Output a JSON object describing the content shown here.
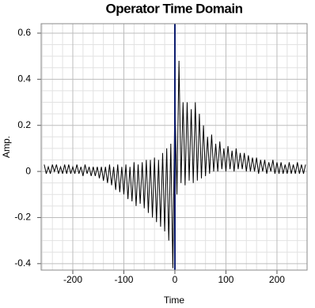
{
  "chart_data": {
    "type": "line",
    "title": "Operator Time Domain",
    "x_label": "Time",
    "y_label": "Amp.",
    "color": "#000000",
    "vline_x": 0,
    "vline_color": "#0a1a6e",
    "grid": true,
    "xlim": [
      -262,
      259
    ],
    "ylim": [
      -0.428,
      0.641
    ],
    "xticks": [
      -200,
      -100,
      0,
      100,
      200
    ],
    "yticks": [
      -0.4,
      -0.2,
      0,
      0.2,
      0.4,
      0.6
    ],
    "xminorticks": [
      -260,
      -240,
      -220,
      -180,
      -160,
      -140,
      -120,
      -80,
      -60,
      -40,
      -20,
      20,
      40,
      60,
      80,
      120,
      140,
      160,
      180,
      220,
      240
    ],
    "yminorticks": [
      -0.35,
      -0.3,
      -0.25,
      -0.15,
      -0.1,
      -0.05,
      0.05,
      0.1,
      0.15,
      0.25,
      0.3,
      0.35,
      0.45,
      0.5,
      0.55
    ],
    "x": [
      -256,
      -252,
      -248,
      -244,
      -240,
      -236,
      -232,
      -228,
      -224,
      -220,
      -216,
      -212,
      -208,
      -204,
      -200,
      -196,
      -192,
      -188,
      -184,
      -180,
      -176,
      -172,
      -168,
      -164,
      -160,
      -156,
      -152,
      -148,
      -144,
      -140,
      -136,
      -132,
      -128,
      -124,
      -120,
      -116,
      -112,
      -108,
      -104,
      -100,
      -96,
      -92,
      -88,
      -84,
      -80,
      -76,
      -72,
      -68,
      -64,
      -60,
      -56,
      -52,
      -48,
      -44,
      -40,
      -36,
      -32,
      -28,
      -24,
      -20,
      -16,
      -12,
      -8,
      -4,
      0,
      4,
      8,
      12,
      16,
      20,
      24,
      28,
      32,
      36,
      40,
      44,
      48,
      52,
      56,
      60,
      64,
      68,
      72,
      76,
      80,
      84,
      88,
      92,
      96,
      100,
      104,
      108,
      112,
      116,
      120,
      124,
      128,
      132,
      136,
      140,
      144,
      148,
      152,
      156,
      160,
      164,
      168,
      172,
      176,
      180,
      184,
      188,
      192,
      196,
      200,
      204,
      208,
      212,
      216,
      220,
      224,
      228,
      232,
      236,
      240,
      244,
      248,
      252,
      256
    ],
    "values": [
      0.03,
      -0.01,
      0.02,
      -0.01,
      0.03,
      0,
      0.03,
      -0.01,
      0.02,
      -0.01,
      0.03,
      -0.01,
      0.03,
      -0.01,
      0.02,
      -0.01,
      0.03,
      -0.01,
      0.02,
      -0.02,
      0.03,
      -0.01,
      0.02,
      -0.02,
      0.02,
      -0.02,
      0.02,
      -0.03,
      0.02,
      -0.04,
      0.02,
      -0.05,
      0.03,
      -0.06,
      0.02,
      -0.08,
      0.03,
      -0.09,
      0.02,
      -0.1,
      0.03,
      -0.12,
      0.02,
      -0.13,
      0.04,
      -0.15,
      0.03,
      -0.14,
      0.04,
      -0.16,
      0.05,
      -0.18,
      0.05,
      -0.2,
      0.06,
      -0.22,
      0.05,
      -0.24,
      0.08,
      -0.26,
      0.1,
      -0.3,
      0.12,
      -0.42,
      0.32,
      -0.1,
      0.48,
      -0.05,
      0.3,
      -0.06,
      0.3,
      -0.04,
      0.27,
      -0.05,
      0.3,
      -0.04,
      0.25,
      -0.03,
      0.2,
      -0.02,
      0.15,
      -0.01,
      0.16,
      0,
      0.12,
      0,
      0.13,
      0.01,
      0.1,
      0,
      0.11,
      0.01,
      0.09,
      0,
      0.1,
      0.01,
      0.08,
      0.01,
      0.08,
      0,
      0.07,
      0,
      0.06,
      0,
      0.06,
      -0.01,
      0.05,
      0,
      0.05,
      -0.01,
      0.04,
      0,
      0.05,
      -0.01,
      0.04,
      -0.01,
      0.04,
      -0.01,
      0.03,
      -0.01,
      0.04,
      -0.01,
      0.03,
      -0.01,
      0.04,
      -0.01,
      0.03,
      -0.01,
      0.03
    ]
  }
}
